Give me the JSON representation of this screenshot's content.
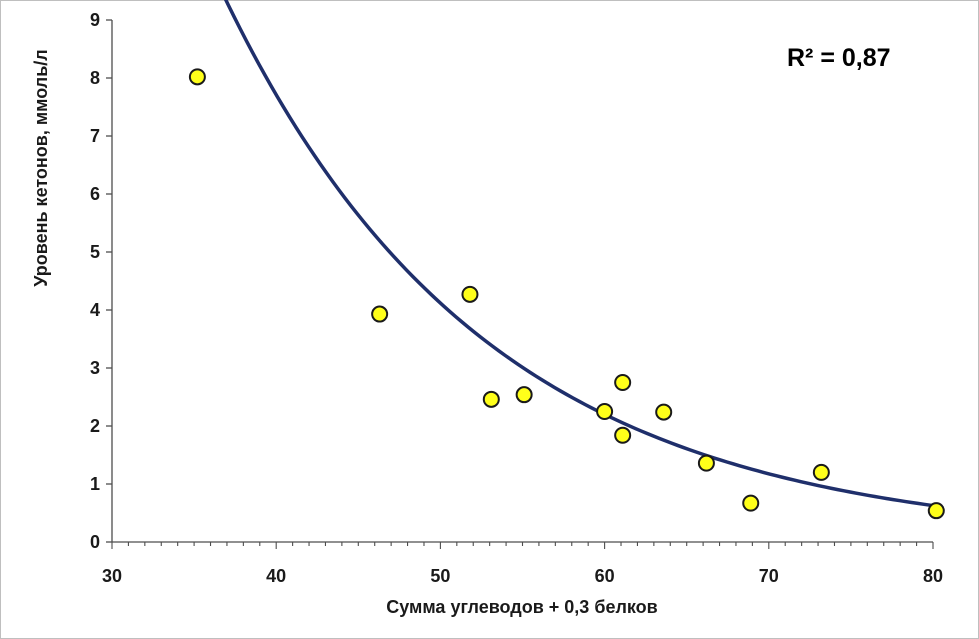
{
  "chart_data": {
    "type": "scatter",
    "xlabel": "Сумма углеводов + 0,3 белков",
    "ylabel": "Уровень кетонов, ммоль/л",
    "xlim": [
      30,
      80
    ],
    "ylim": [
      0,
      9
    ],
    "x_ticks": [
      "30",
      "40",
      "50",
      "60",
      "70",
      "80"
    ],
    "y_ticks": [
      "0",
      "1",
      "2",
      "3",
      "4",
      "5",
      "6",
      "7",
      "8",
      "9"
    ],
    "x_minor_step": 1,
    "grid": false,
    "annotation": "R² = 0,87",
    "colors": {
      "point_fill": "#ffff1a",
      "point_stroke": "#1a1a1a",
      "trendline": "#1f2f6b",
      "axis": "#4d4d4d"
    },
    "series": [
      {
        "values": [
          {
            "x": 35.2,
            "y": 8.02
          },
          {
            "x": 46.3,
            "y": 3.93
          },
          {
            "x": 51.8,
            "y": 4.27
          },
          {
            "x": 53.1,
            "y": 2.46
          },
          {
            "x": 55.1,
            "y": 2.54
          },
          {
            "x": 60.0,
            "y": 2.25
          },
          {
            "x": 61.1,
            "y": 2.75
          },
          {
            "x": 61.1,
            "y": 1.84
          },
          {
            "x": 63.6,
            "y": 2.24
          },
          {
            "x": 66.2,
            "y": 1.36
          },
          {
            "x": 68.9,
            "y": 0.67
          },
          {
            "x": 73.2,
            "y": 1.2
          },
          {
            "x": 80.2,
            "y": 0.54
          }
        ]
      }
    ],
    "trendline": {
      "type": "exponential",
      "a": 94.7,
      "b": -0.0627,
      "x_range": [
        35.2,
        80.2
      ]
    }
  }
}
